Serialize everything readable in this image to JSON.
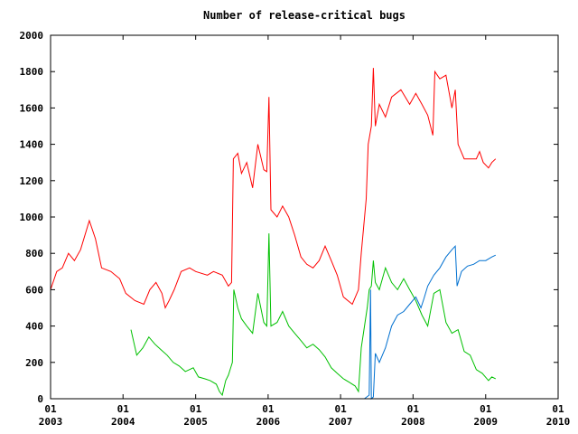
{
  "chart_data": {
    "type": "line",
    "title": "Number of release-critical bugs",
    "xlabel": "",
    "ylabel": "",
    "ylim": [
      0,
      2000
    ],
    "xlim": [
      "2003-01-01",
      "2010-01-01"
    ],
    "grid": false,
    "legend": "none",
    "y_ticks": [
      "0",
      "200",
      "400",
      "600",
      "800",
      "1000",
      "1200",
      "1400",
      "1600",
      "1800",
      "2000"
    ],
    "x_ticks": [
      {
        "month": "01",
        "year": "2003"
      },
      {
        "month": "01",
        "year": "2004"
      },
      {
        "month": "01",
        "year": "2005"
      },
      {
        "month": "01",
        "year": "2006"
      },
      {
        "month": "01",
        "year": "2007"
      },
      {
        "month": "01",
        "year": "2008"
      },
      {
        "month": "01",
        "year": "2009"
      },
      {
        "month": "01",
        "year": "2010"
      }
    ],
    "series": [
      {
        "color": "#ff0000",
        "points": [
          [
            "2003-01-01",
            600
          ],
          [
            "2003-02-01",
            700
          ],
          [
            "2003-03-01",
            720
          ],
          [
            "2003-04-01",
            800
          ],
          [
            "2003-05-01",
            760
          ],
          [
            "2003-06-01",
            820
          ],
          [
            "2003-07-15",
            980
          ],
          [
            "2003-08-15",
            880
          ],
          [
            "2003-09-15",
            720
          ],
          [
            "2003-11-01",
            700
          ],
          [
            "2003-12-15",
            660
          ],
          [
            "2004-01-15",
            580
          ],
          [
            "2004-03-01",
            540
          ],
          [
            "2004-04-15",
            520
          ],
          [
            "2004-05-15",
            600
          ],
          [
            "2004-06-15",
            640
          ],
          [
            "2004-07-15",
            580
          ],
          [
            "2004-08-01",
            500
          ],
          [
            "2004-08-20",
            540
          ],
          [
            "2004-09-15",
            600
          ],
          [
            "2004-10-20",
            700
          ],
          [
            "2004-12-01",
            720
          ],
          [
            "2005-01-01",
            700
          ],
          [
            "2005-03-01",
            680
          ],
          [
            "2005-04-01",
            700
          ],
          [
            "2005-05-15",
            680
          ],
          [
            "2005-06-15",
            620
          ],
          [
            "2005-07-01",
            640
          ],
          [
            "2005-07-10",
            1320
          ],
          [
            "2005-08-01",
            1350
          ],
          [
            "2005-08-20",
            1240
          ],
          [
            "2005-09-15",
            1300
          ],
          [
            "2005-10-15",
            1160
          ],
          [
            "2005-11-10",
            1400
          ],
          [
            "2005-12-10",
            1260
          ],
          [
            "2005-12-25",
            1250
          ],
          [
            "2006-01-05",
            1660
          ],
          [
            "2006-01-15",
            1040
          ],
          [
            "2006-02-15",
            1000
          ],
          [
            "2006-03-15",
            1060
          ],
          [
            "2006-04-15",
            1000
          ],
          [
            "2006-05-15",
            900
          ],
          [
            "2006-06-15",
            780
          ],
          [
            "2006-07-15",
            740
          ],
          [
            "2006-08-15",
            720
          ],
          [
            "2006-09-15",
            760
          ],
          [
            "2006-10-15",
            840
          ],
          [
            "2006-11-15",
            760
          ],
          [
            "2006-12-15",
            680
          ],
          [
            "2007-01-15",
            560
          ],
          [
            "2007-03-01",
            520
          ],
          [
            "2007-04-01",
            600
          ],
          [
            "2007-04-15",
            800
          ],
          [
            "2007-05-10",
            1100
          ],
          [
            "2007-05-20",
            1400
          ],
          [
            "2007-06-05",
            1500
          ],
          [
            "2007-06-15",
            1820
          ],
          [
            "2007-06-25",
            1500
          ],
          [
            "2007-07-15",
            1620
          ],
          [
            "2007-08-15",
            1550
          ],
          [
            "2007-09-15",
            1660
          ],
          [
            "2007-11-01",
            1700
          ],
          [
            "2007-12-15",
            1620
          ],
          [
            "2008-01-15",
            1680
          ],
          [
            "2008-02-15",
            1620
          ],
          [
            "2008-03-15",
            1560
          ],
          [
            "2008-04-10",
            1450
          ],
          [
            "2008-04-20",
            1800
          ],
          [
            "2008-05-15",
            1760
          ],
          [
            "2008-06-15",
            1780
          ],
          [
            "2008-07-15",
            1600
          ],
          [
            "2008-08-01",
            1700
          ],
          [
            "2008-08-15",
            1400
          ],
          [
            "2008-09-15",
            1320
          ],
          [
            "2008-10-15",
            1320
          ],
          [
            "2008-11-15",
            1320
          ],
          [
            "2008-12-01",
            1360
          ],
          [
            "2008-12-20",
            1300
          ],
          [
            "2009-01-15",
            1270
          ],
          [
            "2009-02-01",
            1300
          ],
          [
            "2009-02-20",
            1320
          ]
        ]
      },
      {
        "color": "#00c000",
        "points": [
          [
            "2004-02-10",
            380
          ],
          [
            "2004-03-10",
            240
          ],
          [
            "2004-04-10",
            280
          ],
          [
            "2004-05-10",
            340
          ],
          [
            "2004-06-10",
            300
          ],
          [
            "2004-07-10",
            270
          ],
          [
            "2004-08-10",
            240
          ],
          [
            "2004-09-10",
            200
          ],
          [
            "2004-10-10",
            180
          ],
          [
            "2004-11-10",
            150
          ],
          [
            "2004-12-20",
            170
          ],
          [
            "2005-01-15",
            120
          ],
          [
            "2005-02-15",
            110
          ],
          [
            "2005-03-15",
            100
          ],
          [
            "2005-04-15",
            80
          ],
          [
            "2005-05-01",
            40
          ],
          [
            "2005-05-15",
            20
          ],
          [
            "2005-06-01",
            100
          ],
          [
            "2005-06-15",
            130
          ],
          [
            "2005-07-05",
            200
          ],
          [
            "2005-07-12",
            600
          ],
          [
            "2005-08-01",
            500
          ],
          [
            "2005-08-20",
            440
          ],
          [
            "2005-09-15",
            400
          ],
          [
            "2005-10-15",
            360
          ],
          [
            "2005-11-10",
            580
          ],
          [
            "2005-12-10",
            420
          ],
          [
            "2005-12-25",
            400
          ],
          [
            "2006-01-05",
            910
          ],
          [
            "2006-01-15",
            400
          ],
          [
            "2006-02-15",
            420
          ],
          [
            "2006-03-15",
            480
          ],
          [
            "2006-04-15",
            400
          ],
          [
            "2006-05-15",
            360
          ],
          [
            "2006-06-15",
            320
          ],
          [
            "2006-07-15",
            280
          ],
          [
            "2006-08-15",
            300
          ],
          [
            "2006-09-15",
            270
          ],
          [
            "2006-10-15",
            230
          ],
          [
            "2006-11-15",
            170
          ],
          [
            "2006-12-15",
            140
          ],
          [
            "2007-01-15",
            110
          ],
          [
            "2007-02-15",
            90
          ],
          [
            "2007-03-15",
            70
          ],
          [
            "2007-04-01",
            40
          ],
          [
            "2007-04-15",
            280
          ],
          [
            "2007-05-15",
            500
          ],
          [
            "2007-05-25",
            600
          ],
          [
            "2007-06-05",
            620
          ],
          [
            "2007-06-15",
            760
          ],
          [
            "2007-06-25",
            640
          ],
          [
            "2007-07-15",
            600
          ],
          [
            "2007-08-15",
            720
          ],
          [
            "2007-09-15",
            640
          ],
          [
            "2007-10-15",
            600
          ],
          [
            "2007-11-15",
            660
          ],
          [
            "2007-12-15",
            600
          ],
          [
            "2008-01-15",
            540
          ],
          [
            "2008-02-15",
            460
          ],
          [
            "2008-03-15",
            400
          ],
          [
            "2008-04-15",
            580
          ],
          [
            "2008-05-15",
            600
          ],
          [
            "2008-06-15",
            420
          ],
          [
            "2008-07-15",
            360
          ],
          [
            "2008-08-15",
            380
          ],
          [
            "2008-09-15",
            260
          ],
          [
            "2008-10-15",
            240
          ],
          [
            "2008-11-15",
            160
          ],
          [
            "2008-12-15",
            140
          ],
          [
            "2009-01-15",
            100
          ],
          [
            "2009-02-01",
            120
          ],
          [
            "2009-02-20",
            110
          ]
        ]
      },
      {
        "color": "#0070d0",
        "points": [
          [
            "2007-05-01",
            0
          ],
          [
            "2007-05-25",
            20
          ],
          [
            "2007-06-01",
            600
          ],
          [
            "2007-06-05",
            0
          ],
          [
            "2007-06-15",
            10
          ],
          [
            "2007-06-25",
            250
          ],
          [
            "2007-07-15",
            200
          ],
          [
            "2007-08-15",
            280
          ],
          [
            "2007-09-15",
            400
          ],
          [
            "2007-10-15",
            460
          ],
          [
            "2007-11-15",
            480
          ],
          [
            "2007-12-15",
            520
          ],
          [
            "2008-01-15",
            560
          ],
          [
            "2008-02-10",
            500
          ],
          [
            "2008-02-25",
            550
          ],
          [
            "2008-03-15",
            620
          ],
          [
            "2008-04-15",
            680
          ],
          [
            "2008-05-15",
            720
          ],
          [
            "2008-06-15",
            780
          ],
          [
            "2008-07-15",
            820
          ],
          [
            "2008-08-01",
            840
          ],
          [
            "2008-08-10",
            620
          ],
          [
            "2008-09-01",
            700
          ],
          [
            "2008-10-01",
            730
          ],
          [
            "2008-11-01",
            740
          ],
          [
            "2008-12-01",
            760
          ],
          [
            "2009-01-01",
            760
          ],
          [
            "2009-02-01",
            780
          ],
          [
            "2009-02-20",
            790
          ]
        ]
      }
    ]
  }
}
